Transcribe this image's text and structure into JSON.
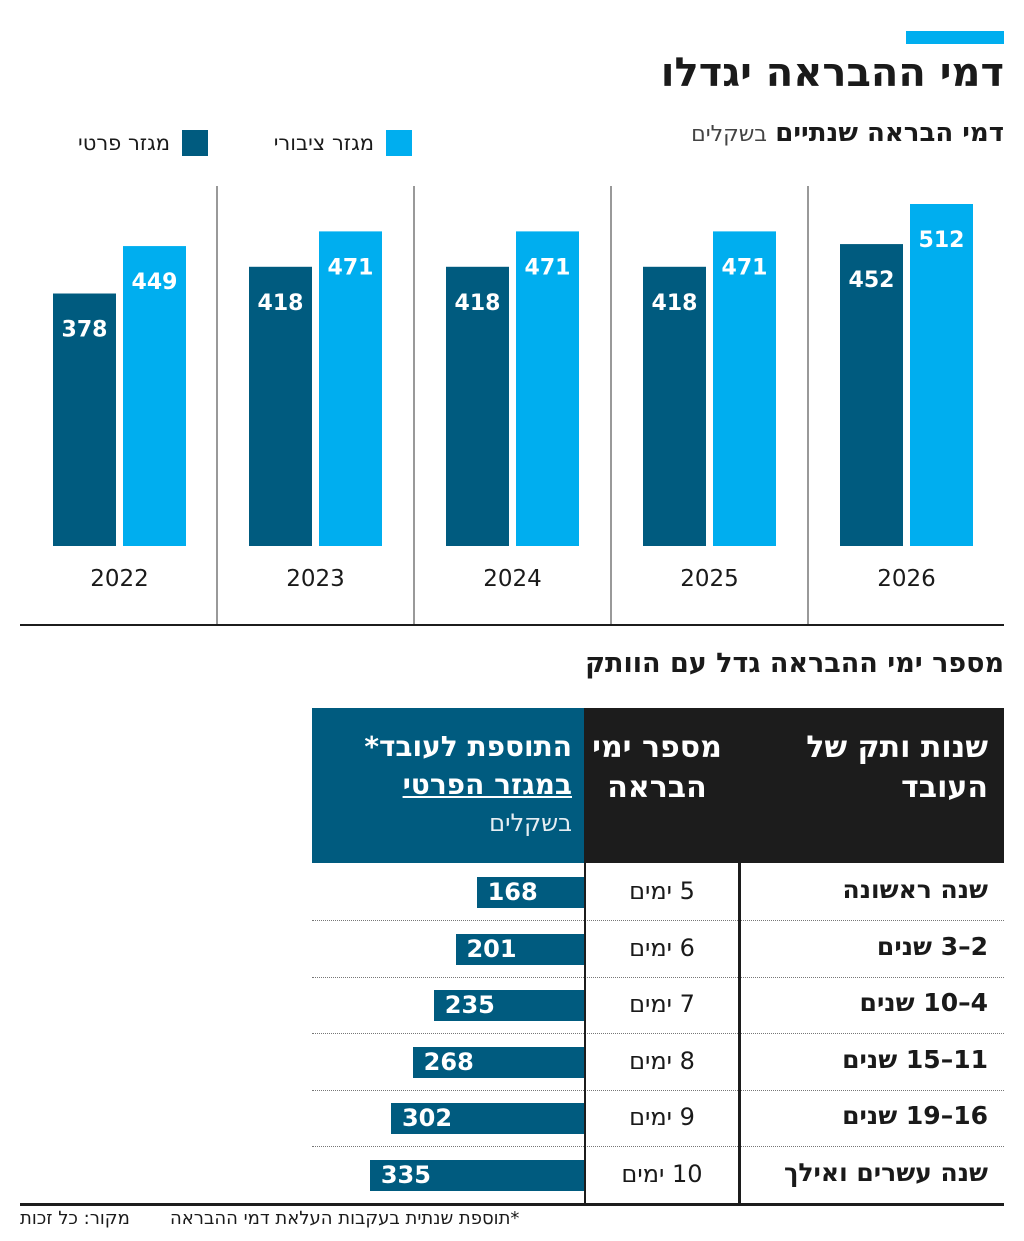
{
  "header": {
    "title": "דמי ההבראה יגדלו",
    "subtitle_strong": "דמי הבראה שנתיים",
    "subtitle_unit": "בשקלים"
  },
  "legend": {
    "public_label": "מגזר ציבורי",
    "private_label": "מגזר פרטי"
  },
  "colors": {
    "public": "#00aeef",
    "private": "#005b7f",
    "table_header_dark": "#1c1c1c",
    "accent": "#00aeef"
  },
  "chart_data": [
    {
      "type": "bar",
      "title": "דמי הבראה שנתיים",
      "unit": "בשקלים",
      "categories": [
        "2022",
        "2023",
        "2024",
        "2025",
        "2026"
      ],
      "series": [
        {
          "name": "מגזר פרטי",
          "color": "#005b7f",
          "values": [
            378,
            418,
            418,
            418,
            452
          ]
        },
        {
          "name": "מגזר ציבורי",
          "color": "#00aeef",
          "values": [
            449,
            471,
            471,
            471,
            512
          ]
        }
      ],
      "ylim": [
        0,
        512
      ],
      "grid": false,
      "legend_position": "top-left"
    },
    {
      "type": "table",
      "title": "מספר ימי ההבראה גדל עם הוותק",
      "columns": [
        "שנות ותק של העובד",
        "מספר ימי הבראה",
        "התוספת לעובד* במגזר הפרטי בשקלים"
      ],
      "rows": [
        {
          "tenure": "שנה ראשונה",
          "days": "5 ימים",
          "extra": 168
        },
        {
          "tenure": "2–3 שנים",
          "days": "6 ימים",
          "extra": 201
        },
        {
          "tenure": "4–10 שנים",
          "days": "7 ימים",
          "extra": 235
        },
        {
          "tenure": "11–15 שנים",
          "days": "8 ימים",
          "extra": 268
        },
        {
          "tenure": "16–19 שנים",
          "days": "9 ימים",
          "extra": 302
        },
        {
          "tenure": "שנה עשרים ואילך",
          "days": "10 ימים",
          "extra": 335
        }
      ]
    }
  ],
  "table": {
    "section_title": "מספר ימי ההבראה גדל עם הוותק",
    "head_tenure_1": "שנות ותק של",
    "head_tenure_2": "העובד",
    "head_days_1": "מספר ימי",
    "head_days_2": "הבראה",
    "head_extra_1": "התוספת לעובד*",
    "head_extra_2": "במגזר הפרטי",
    "head_extra_3": "בשקלים"
  },
  "footer": {
    "footnote": "*תוספת שנתית בעקבות העלאת דמי ההבראה",
    "source": "מקור: כל זכות"
  }
}
